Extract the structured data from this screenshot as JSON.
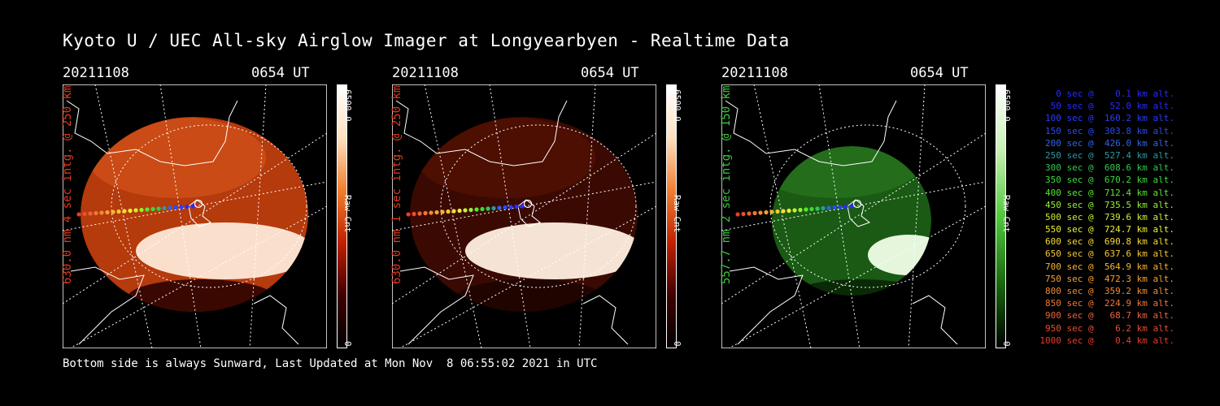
{
  "title": "Kyoto U / UEC All-sky Airglow Imager at Longyearbyen - Realtime Data",
  "panels": [
    {
      "date": "20211108",
      "time": "0654 UT",
      "label": "630.0 nm 4 sec intg. @ 250 km",
      "label_color": "#e03c1e",
      "cbar_max": "6500.0",
      "cbar_unit": "Raw Cnt",
      "cbar_min": "0",
      "theme": "red"
    },
    {
      "date": "20211108",
      "time": "0654 UT",
      "label": "630.0 nm 1 sec intg. @ 250 km",
      "label_color": "#e03c1e",
      "cbar_max": "6500.0",
      "cbar_unit": "Raw Cnt",
      "cbar_min": "0",
      "theme": "darkred"
    },
    {
      "date": "20211108",
      "time": "0654 UT",
      "label": "557.7 nm 2 sec intg. @ 150 km",
      "label_color": "#3cc83c",
      "cbar_max": "6500.0",
      "cbar_unit": "Raw Cnt",
      "cbar_min": "0",
      "theme": "green"
    }
  ],
  "legend": [
    {
      "text": "0 sec @    0.1 km alt.",
      "color": "#2a2aff"
    },
    {
      "text": "50 sec @   52.0 km alt.",
      "color": "#2a2aff"
    },
    {
      "text": "100 sec @  160.2 km alt.",
      "color": "#2a3cff"
    },
    {
      "text": "150 sec @  303.8 km alt.",
      "color": "#2a4cf0"
    },
    {
      "text": "200 sec @  426.0 km alt.",
      "color": "#3264e6"
    },
    {
      "text": "250 sec @  527.4 km alt.",
      "color": "#2a9aa0"
    },
    {
      "text": "300 sec @  608.6 km alt.",
      "color": "#32c850"
    },
    {
      "text": "350 sec @  670.2 km alt.",
      "color": "#3cdc3c"
    },
    {
      "text": "400 sec @  712.4 km alt.",
      "color": "#5ae632"
    },
    {
      "text": "450 sec @  735.5 km alt.",
      "color": "#96f032"
    },
    {
      "text": "500 sec @  739.6 km alt.",
      "color": "#c8f032"
    },
    {
      "text": "550 sec @  724.7 km alt.",
      "color": "#ecf032"
    },
    {
      "text": "600 sec @  690.8 km alt.",
      "color": "#f8dc32"
    },
    {
      "text": "650 sec @  637.6 km alt.",
      "color": "#f8c832"
    },
    {
      "text": "700 sec @  564.9 km alt.",
      "color": "#f8b432"
    },
    {
      "text": "750 sec @  472.3 km alt.",
      "color": "#f8a032"
    },
    {
      "text": "800 sec @  359.2 km alt.",
      "color": "#f08c32"
    },
    {
      "text": "850 sec @  224.9 km alt.",
      "color": "#f07832"
    },
    {
      "text": "900 sec @   68.7 km alt.",
      "color": "#e8643c"
    },
    {
      "text": "950 sec @    6.2 km alt.",
      "color": "#e85032"
    },
    {
      "text": "1000 sec @    0.4 km alt.",
      "color": "#e83c28"
    }
  ],
  "footer": "Bottom side is always Sunward, Last Updated at Mon Nov  8 06:55:02 2021 in UTC"
}
